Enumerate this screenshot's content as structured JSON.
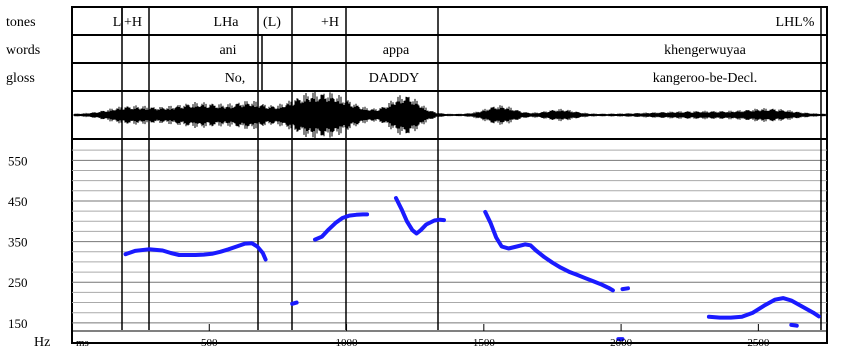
{
  "tiers": {
    "tones": {
      "label": "tones",
      "items": [
        {
          "text": "L",
          "at": 117
        },
        {
          "text": "+H",
          "at": 133
        },
        {
          "text": "LHa",
          "at": 226
        },
        {
          "text": "(L)",
          "at": 272
        },
        {
          "text": "+H",
          "at": 330
        },
        {
          "text": "LHL%",
          "at": 795
        }
      ]
    },
    "words": {
      "label": "words",
      "items": [
        {
          "text": "ani",
          "at": 228
        },
        {
          "text": "appa",
          "at": 396
        },
        {
          "text": "khengerwuyaa",
          "at": 705
        }
      ]
    },
    "gloss": {
      "label": "gloss",
      "items": [
        {
          "text": "No,",
          "at": 235
        },
        {
          "text": "DADDY",
          "at": 394
        },
        {
          "text": "kangeroo-be-Decl.",
          "at": 705
        }
      ]
    }
  },
  "pitch_axis": {
    "unit_label": "Hz",
    "ticks": [
      "550",
      "450",
      "350",
      "250",
      "150"
    ]
  },
  "time_axis": {
    "unit_label": "ms",
    "ticks": [
      "500",
      "1000",
      "1500",
      "2000",
      "2500"
    ]
  },
  "chart_data": {
    "type": "scatter",
    "x_unit": "ms",
    "y_unit": "Hz",
    "xlim": [
      0,
      2750
    ],
    "ylim": [
      130,
      600
    ],
    "yticks": [
      150,
      250,
      350,
      450,
      550
    ],
    "xticks": [
      500,
      1000,
      1500,
      2000,
      2500
    ],
    "grid": true,
    "pitch_color": "#1a1aff",
    "segments": [
      [
        [
          195,
          319
        ],
        [
          230,
          327
        ],
        [
          280,
          331
        ],
        [
          330,
          328
        ],
        [
          360,
          322
        ],
        [
          390,
          317
        ],
        [
          420,
          317
        ],
        [
          450,
          317
        ],
        [
          480,
          318
        ],
        [
          510,
          320
        ],
        [
          540,
          325
        ],
        [
          570,
          331
        ],
        [
          600,
          338
        ],
        [
          630,
          345
        ],
        [
          655,
          346
        ],
        [
          675,
          338
        ],
        [
          695,
          322
        ],
        [
          705,
          306
        ]
      ],
      [
        [
          802,
          197
        ],
        [
          818,
          200
        ]
      ],
      [
        [
          885,
          355
        ],
        [
          910,
          362
        ],
        [
          935,
          380
        ],
        [
          960,
          396
        ],
        [
          985,
          408
        ],
        [
          1010,
          414
        ],
        [
          1035,
          416
        ],
        [
          1060,
          417
        ],
        [
          1075,
          417
        ]
      ],
      [
        [
          1180,
          457
        ],
        [
          1200,
          430
        ],
        [
          1220,
          400
        ],
        [
          1240,
          378
        ],
        [
          1255,
          370
        ],
        [
          1270,
          378
        ],
        [
          1290,
          392
        ],
        [
          1320,
          402
        ],
        [
          1340,
          404
        ],
        [
          1355,
          403
        ]
      ],
      [
        [
          1505,
          423
        ],
        [
          1525,
          395
        ],
        [
          1545,
          360
        ],
        [
          1565,
          338
        ],
        [
          1590,
          333
        ],
        [
          1620,
          338
        ],
        [
          1650,
          343
        ],
        [
          1670,
          341
        ],
        [
          1690,
          328
        ],
        [
          1720,
          312
        ],
        [
          1750,
          298
        ],
        [
          1780,
          286
        ],
        [
          1810,
          276
        ],
        [
          1840,
          268
        ],
        [
          1870,
          260
        ],
        [
          1900,
          252
        ],
        [
          1930,
          244
        ],
        [
          1955,
          236
        ],
        [
          1970,
          230
        ]
      ],
      [
        [
          2005,
          233
        ],
        [
          2025,
          235
        ]
      ],
      [
        [
          1990,
          110
        ],
        [
          2005,
          110
        ]
      ],
      [
        [
          2320,
          165
        ],
        [
          2360,
          163
        ],
        [
          2400,
          163
        ],
        [
          2440,
          165
        ],
        [
          2480,
          175
        ],
        [
          2520,
          192
        ],
        [
          2560,
          207
        ],
        [
          2590,
          211
        ],
        [
          2620,
          205
        ],
        [
          2660,
          190
        ],
        [
          2700,
          175
        ],
        [
          2720,
          166
        ]
      ],
      [
        [
          2620,
          145
        ],
        [
          2640,
          143
        ]
      ]
    ]
  }
}
